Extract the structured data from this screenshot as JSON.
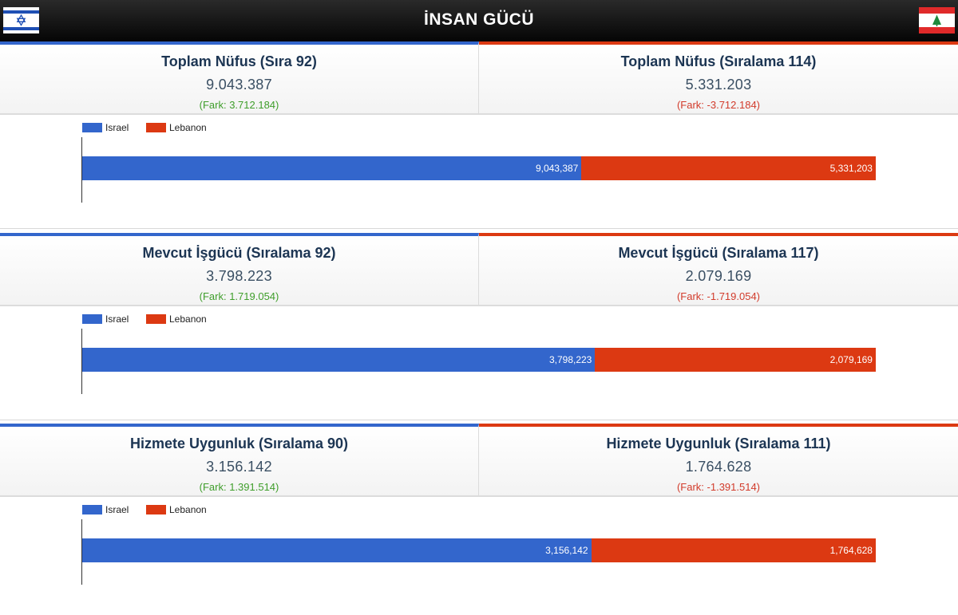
{
  "header": {
    "title": "İNSAN GÜCÜ"
  },
  "countries": {
    "left": {
      "name": "Israel",
      "color": "#3366cc",
      "flag_icon": "israel-flag-icon"
    },
    "right": {
      "name": "Lebanon",
      "color": "#dc3912",
      "flag_icon": "lebanon-flag-icon"
    }
  },
  "sections": [
    {
      "left": {
        "label": "Toplam Nüfus (Sıra 92)",
        "value": "9.043.387",
        "diff": "(Fark: 3.712.184)"
      },
      "right": {
        "label": "Toplam Nüfus (Sıralama 114)",
        "value": "5.331.203",
        "diff": "(Fark: -3.712.184)"
      },
      "chart_data": {
        "type": "bar",
        "stacked": true,
        "orientation": "horizontal",
        "legend": "top-left",
        "series": [
          {
            "name": "Israel",
            "values": [
              9043387
            ],
            "label": "9,043,387"
          },
          {
            "name": "Lebanon",
            "values": [
              5331203
            ],
            "label": "5,331,203"
          }
        ]
      }
    },
    {
      "left": {
        "label": "Mevcut İşgücü (Sıralama 92)",
        "value": "3.798.223",
        "diff": "(Fark: 1.719.054)"
      },
      "right": {
        "label": "Mevcut İşgücü (Sıralama 117)",
        "value": "2.079.169",
        "diff": "(Fark: -1.719.054)"
      },
      "chart_data": {
        "type": "bar",
        "stacked": true,
        "orientation": "horizontal",
        "legend": "top-left",
        "series": [
          {
            "name": "Israel",
            "values": [
              3798223
            ],
            "label": "3,798,223"
          },
          {
            "name": "Lebanon",
            "values": [
              2079169
            ],
            "label": "2,079,169"
          }
        ]
      }
    },
    {
      "left": {
        "label": "Hizmete Uygunluk (Sıralama 90)",
        "value": "3.156.142",
        "diff": "(Fark: 1.391.514)"
      },
      "right": {
        "label": "Hizmete Uygunluk (Sıralama 111)",
        "value": "1.764.628",
        "diff": "(Fark: -1.391.514)"
      },
      "chart_data": {
        "type": "bar",
        "stacked": true,
        "orientation": "horizontal",
        "legend": "top-left",
        "series": [
          {
            "name": "Israel",
            "values": [
              3156142
            ],
            "label": "3,156,142"
          },
          {
            "name": "Lebanon",
            "values": [
              1764628
            ],
            "label": "1,764,628"
          }
        ]
      }
    }
  ]
}
